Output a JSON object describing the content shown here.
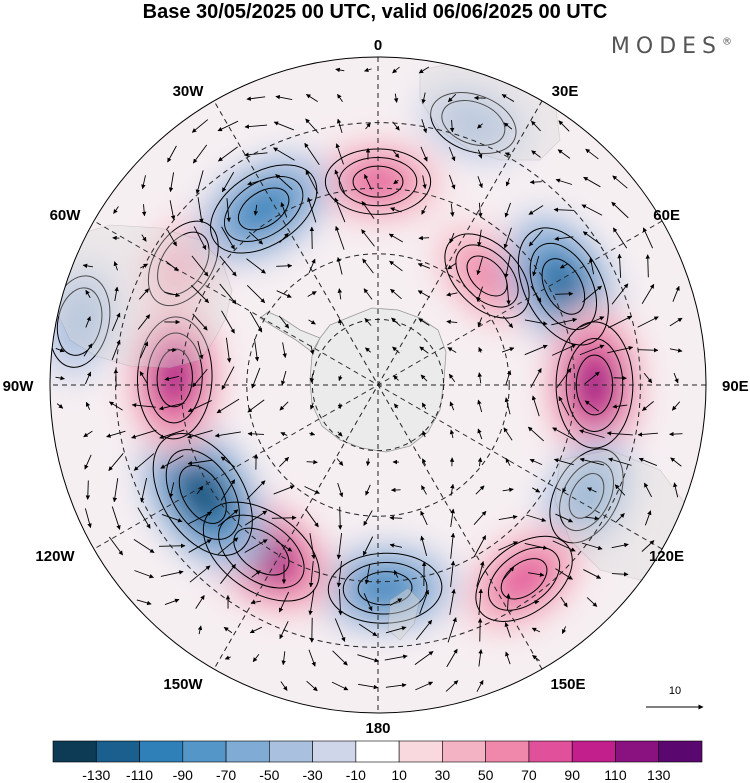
{
  "title": "Base 30/05/2025 00 UTC, valid 06/06/2025 00 UTC",
  "brand": {
    "name": "MODES",
    "mark": "®"
  },
  "map": {
    "projection": "south-polar-stereographic",
    "longitude_labels": [
      {
        "id": "lon-0",
        "text": "0"
      },
      {
        "id": "lon-30e",
        "text": "30E"
      },
      {
        "id": "lon-60e",
        "text": "60E"
      },
      {
        "id": "lon-90e",
        "text": "90E"
      },
      {
        "id": "lon-120e",
        "text": "120E"
      },
      {
        "id": "lon-150e",
        "text": "150E"
      },
      {
        "id": "lon-180",
        "text": "180"
      },
      {
        "id": "lon-150w",
        "text": "150W"
      },
      {
        "id": "lon-120w",
        "text": "120W"
      },
      {
        "id": "lon-90w",
        "text": "90W"
      },
      {
        "id": "lon-60w",
        "text": "60W"
      },
      {
        "id": "lon-30w",
        "text": "30W"
      }
    ],
    "wind_reference_vector": "10",
    "anomaly_centers": [
      {
        "lon": 0,
        "colat": 0.62,
        "value": 70
      },
      {
        "lon": 45,
        "colat": 0.47,
        "value": 60
      },
      {
        "lon": 62,
        "colat": 0.64,
        "value": -120
      },
      {
        "lon": 90,
        "colat": 0.66,
        "value": 120
      },
      {
        "lon": 118,
        "colat": 0.72,
        "value": -60
      },
      {
        "lon": 143,
        "colat": 0.74,
        "value": 80
      },
      {
        "lon": 178,
        "colat": 0.62,
        "value": -90
      },
      {
        "lon": 215,
        "colat": 0.62,
        "value": 130
      },
      {
        "lon": 238,
        "colat": 0.63,
        "value": -140
      },
      {
        "lon": 272,
        "colat": 0.62,
        "value": 110
      },
      {
        "lon": 302,
        "colat": 0.7,
        "value": 40
      },
      {
        "lon": 327,
        "colat": 0.64,
        "value": -100
      },
      {
        "lon": 282,
        "colat": 0.93,
        "value": -40
      },
      {
        "lon": 20,
        "colat": 0.85,
        "value": -30
      }
    ]
  },
  "colorbar": {
    "ticks": [
      "-130",
      "-110",
      "-90",
      "-70",
      "-50",
      "-30",
      "-10",
      "10",
      "30",
      "50",
      "70",
      "90",
      "110",
      "130"
    ],
    "colors": [
      "#0d3b56",
      "#1a5f8e",
      "#2f7fb8",
      "#5596c8",
      "#7fabd5",
      "#a9c0df",
      "#d0d6ea",
      "#ffffff",
      "#f9d9dd",
      "#f4b3c4",
      "#ef88aa",
      "#e1509a",
      "#c21f8d",
      "#8a1180",
      "#5a0870"
    ]
  }
}
